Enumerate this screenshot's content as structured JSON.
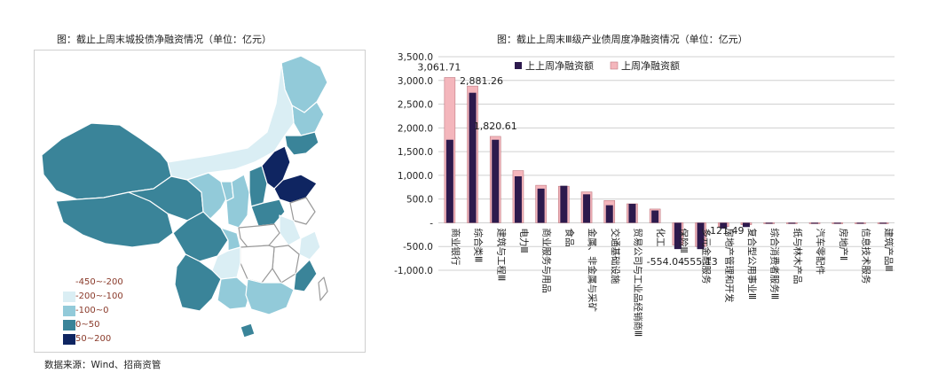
{
  "left_title": "图：截止上周末城投债净融资情况（单位：亿元）",
  "right_title": "图：截止上周末Ⅲ级产业债周度净融资情况（单位：亿元）",
  "source": "数据来源：Wind、招商资管",
  "map_legend": [
    {
      "label": "-450~-200",
      "color": "#ffffff"
    },
    {
      "label": "-200~-100",
      "color": "#daeef4"
    },
    {
      "label": "-100~0",
      "color": "#92cad9"
    },
    {
      "label": "0~50",
      "color": "#3a8499"
    },
    {
      "label": "50~200",
      "color": "#0f2561"
    }
  ],
  "colors": {
    "last_week": "#2d1a4d",
    "prev_week": "#f4b6bc",
    "grid": "#d0d0d0"
  },
  "chart_data": {
    "type": "bar",
    "title": "图：截止上周末Ⅲ级产业债周度净融资情况（单位：亿元）",
    "ylim": [
      -1000,
      3500
    ],
    "yticks": [
      "3,500.0",
      "3,000.0",
      "2,500.0",
      "2,000.0",
      "1,500.0",
      "1,000.0",
      "500.0",
      "-",
      "-500.0",
      "-1,000.0"
    ],
    "ytick_values": [
      3500,
      3000,
      2500,
      2000,
      1500,
      1000,
      500,
      0,
      -500,
      -1000
    ],
    "legend_position": "top",
    "categories": [
      "商业银行",
      "综合类Ⅲ",
      "建筑与工程Ⅲ",
      "电力Ⅲ",
      "商业服务与用品",
      "食品",
      "金属、非金属与采矿",
      "交通基础设施",
      "贸易公司与工业品经销商Ⅲ",
      "化工",
      "保险Ⅲ",
      "多元金融服务",
      "房地产管理和开发",
      "复合型公用事业Ⅲ",
      "综合消费者服务Ⅲ",
      "纸与林木产品",
      "汽车零配件",
      "房地产Ⅱ",
      "信息技术服务",
      "建筑产品Ⅲ"
    ],
    "series": [
      {
        "name": "上上周净融资额",
        "values": [
          1750,
          2740,
          1750,
          980,
          720,
          780,
          600,
          370,
          400,
          260,
          -554.04,
          -555.13,
          -121.49,
          -90,
          -10,
          -10,
          -8,
          -8,
          -6,
          -6
        ]
      },
      {
        "name": "上周净融资额",
        "values": [
          3061.71,
          2881.26,
          1820.61,
          1100,
          790,
          770,
          650,
          470,
          400,
          290,
          -470,
          -500,
          -80,
          -40,
          -6,
          -6,
          -5,
          -5,
          -5,
          -5
        ]
      }
    ],
    "data_labels": [
      {
        "index": 0,
        "text": "3,061.71"
      },
      {
        "index": 1,
        "text": "2,881.26"
      },
      {
        "index": 2,
        "text": "1,820.61"
      },
      {
        "index": 10,
        "text": "-554.04"
      },
      {
        "index": 11,
        "text": "-555.13"
      },
      {
        "index": 12,
        "text": "-121.49"
      }
    ]
  }
}
